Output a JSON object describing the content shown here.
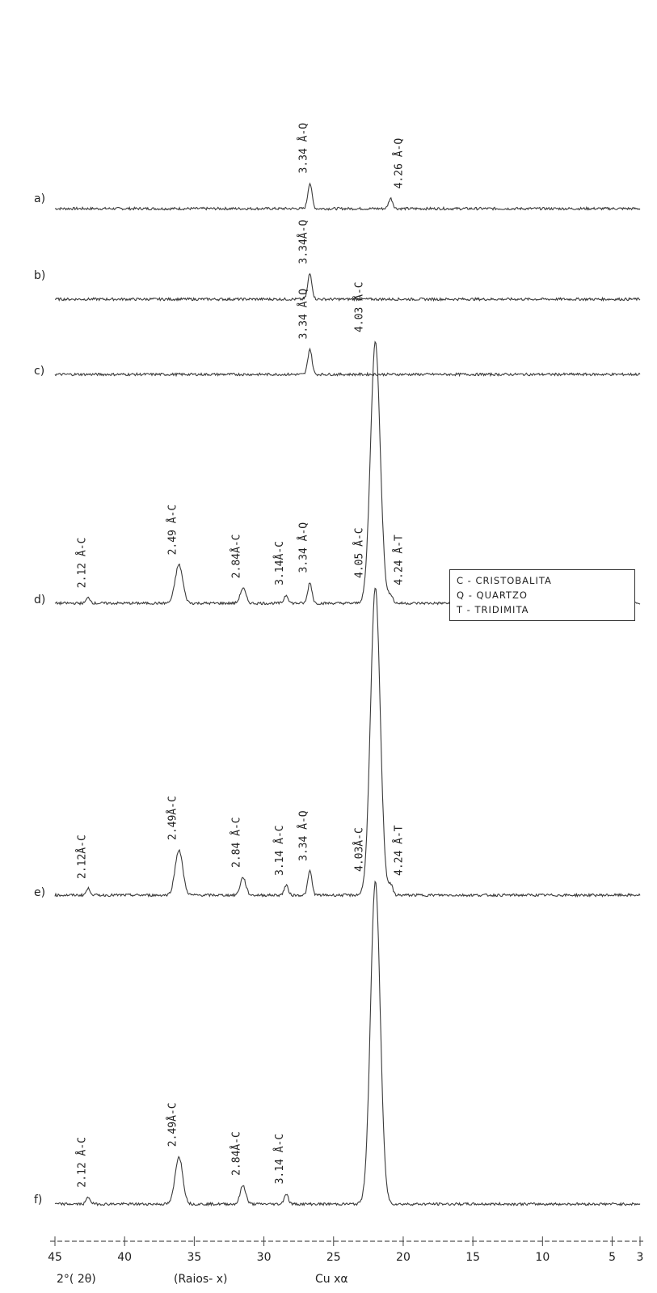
{
  "chart_data": {
    "type": "line",
    "x_axis": {
      "range": [
        45,
        3
      ],
      "ticks": [
        45,
        40,
        35,
        30,
        25,
        20,
        15,
        10,
        5,
        3
      ],
      "tick_labels": [
        "45",
        "40",
        "35",
        "30",
        "25",
        "20",
        "15",
        "10",
        "5",
        "3"
      ],
      "label_parts": [
        "2°( 2θ)",
        "(Raios- x)",
        "Cu  xα"
      ]
    },
    "legend": {
      "placement": "right",
      "items": [
        "C - CRISTOBALITA",
        "Q  -  QUARTZO",
        "T  -  TRIDIMITA"
      ]
    },
    "series": [
      {
        "trace_label": "a)",
        "stroke": "#3a3a3a",
        "background": "amorphous hump, rising toward low angle",
        "peaks": [
          {
            "two_theta": 26.7,
            "text": "3.34 Å-Q"
          },
          {
            "two_theta": 20.9,
            "text": "4.26 Å-Q"
          }
        ]
      },
      {
        "trace_label": "b)",
        "stroke": "#3a3a3a",
        "background": "amorphous hump, rising toward low angle",
        "peaks": [
          {
            "two_theta": 26.7,
            "text": "3.34Å-Q"
          }
        ]
      },
      {
        "trace_label": "c)",
        "stroke": "#3a3a3a",
        "background": "amorphous hump, rising toward low angle",
        "peaks": [
          {
            "two_theta": 26.7,
            "text": "3.34 Å-Q"
          }
        ]
      },
      {
        "trace_label": "d)",
        "stroke": "#3a3a3a",
        "background": "flat",
        "peaks": [
          {
            "two_theta": 42.6,
            "text": "2.12 Å-C"
          },
          {
            "two_theta": 36.1,
            "text": "2.49 Å-C"
          },
          {
            "two_theta": 31.5,
            "text": "2.84Å-C"
          },
          {
            "two_theta": 28.4,
            "text": "3.14Å-C"
          },
          {
            "two_theta": 26.7,
            "text": "3.34 Å-Q"
          },
          {
            "two_theta": 22.0,
            "text": "4.03 Å-C"
          },
          {
            "two_theta": 20.9,
            "text": "4.24 Å-T"
          }
        ]
      },
      {
        "trace_label": "e)",
        "stroke": "#3a3a3a",
        "background": "flat",
        "peaks": [
          {
            "two_theta": 42.6,
            "text": "2.12Å-C"
          },
          {
            "two_theta": 36.1,
            "text": "2.49Å-C"
          },
          {
            "two_theta": 31.5,
            "text": "2.84 Å-C"
          },
          {
            "two_theta": 28.4,
            "text": "3.14 Å-C"
          },
          {
            "two_theta": 26.7,
            "text": "3.34 Å-Q"
          },
          {
            "two_theta": 22.0,
            "text": "4.05 Å-C"
          },
          {
            "two_theta": 20.9,
            "text": "4.24 Å-T"
          }
        ]
      },
      {
        "trace_label": "f)",
        "stroke": "#3a3a3a",
        "background": "flat",
        "peaks": [
          {
            "two_theta": 42.6,
            "text": "2.12 Å-C"
          },
          {
            "two_theta": 36.1,
            "text": "2.49Å-C"
          },
          {
            "two_theta": 31.5,
            "text": "2.84Å-C"
          },
          {
            "two_theta": 28.4,
            "text": "3.14 Å-C"
          },
          {
            "two_theta": 22.0,
            "text": "4.03Å-C"
          }
        ]
      }
    ]
  }
}
